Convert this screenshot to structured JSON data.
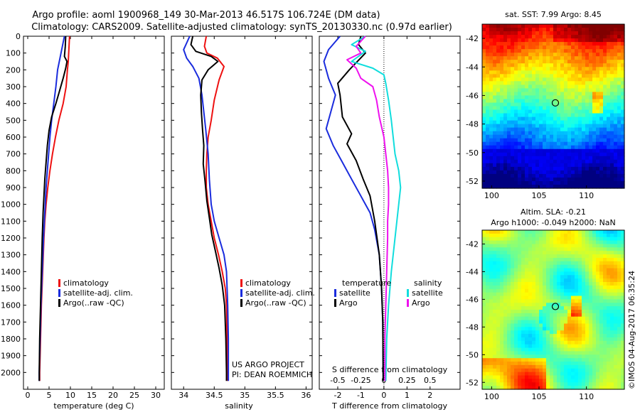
{
  "title_line1": "Argo profile: aoml 1900968_149 30-Mar-2013 46.517S 106.724E (DM data)",
  "title_line2": "Climatology: CARS2009. Satellite-adjusted climatology: synTS_20130330.nc (0.97d earlier)",
  "stamp": "©IMOS 04-Aug-2017 06:35:24",
  "project_note_1": "US ARGO PROJECT",
  "project_note_2": "PI: DEAN ROEMMICH",
  "colors": {
    "climatology": "#ee1111",
    "satellite": "#1a2cdd",
    "argo": "#000000",
    "argo_diff": "#ee11ee",
    "sat_diff": "#11dddd"
  },
  "chart_data": [
    {
      "id": "temperature",
      "type": "line",
      "xlabel": "temperature (deg C)",
      "ylabel": "",
      "xlim": [
        -1,
        32
      ],
      "ylim": [
        2100,
        0
      ],
      "xticks": [
        0,
        5,
        10,
        15,
        20,
        25,
        30
      ],
      "yticks": [
        0,
        100,
        200,
        300,
        400,
        500,
        600,
        700,
        800,
        900,
        1000,
        1100,
        1200,
        1300,
        1400,
        1500,
        1600,
        1700,
        1800,
        1900,
        2000
      ],
      "legend": [
        "climatology",
        "satellite-adj. clim.",
        "Argo(..raw -QC)"
      ],
      "series": [
        {
          "name": "climatology",
          "color_key": "climatology",
          "points": [
            [
              9.8,
              0
            ],
            [
              9.7,
              50
            ],
            [
              9.6,
              100
            ],
            [
              9.5,
              150
            ],
            [
              9.3,
              200
            ],
            [
              9.0,
              300
            ],
            [
              8.3,
              400
            ],
            [
              7.3,
              500
            ],
            [
              6.5,
              600
            ],
            [
              5.8,
              700
            ],
            [
              5.2,
              800
            ],
            [
              4.7,
              900
            ],
            [
              4.3,
              1000
            ],
            [
              4.0,
              1100
            ],
            [
              3.8,
              1200
            ],
            [
              3.5,
              1400
            ],
            [
              3.2,
              1600
            ],
            [
              3.0,
              1800
            ],
            [
              2.8,
              2000
            ],
            [
              2.8,
              2050
            ]
          ]
        },
        {
          "name": "satellite-adj. clim.",
          "color_key": "satellite",
          "points": [
            [
              8.6,
              0
            ],
            [
              8.2,
              50
            ],
            [
              7.8,
              100
            ],
            [
              7.4,
              150
            ],
            [
              7.0,
              200
            ],
            [
              6.6,
              300
            ],
            [
              6.1,
              400
            ],
            [
              5.6,
              500
            ],
            [
              5.2,
              600
            ],
            [
              4.9,
              700
            ],
            [
              4.6,
              800
            ],
            [
              4.3,
              900
            ],
            [
              4.1,
              1000
            ],
            [
              3.9,
              1100
            ],
            [
              3.7,
              1200
            ],
            [
              3.4,
              1400
            ],
            [
              3.1,
              1600
            ],
            [
              2.9,
              1800
            ],
            [
              2.7,
              2000
            ],
            [
              2.7,
              2050
            ]
          ]
        },
        {
          "name": "Argo(..raw -QC)",
          "color_key": "argo",
          "points": [
            [
              8.9,
              0
            ],
            [
              8.8,
              60
            ],
            [
              8.6,
              120
            ],
            [
              9.2,
              150
            ],
            [
              8.9,
              190
            ],
            [
              8.3,
              250
            ],
            [
              7.4,
              330
            ],
            [
              6.6,
              400
            ],
            [
              5.6,
              480
            ],
            [
              5.0,
              560
            ],
            [
              4.6,
              650
            ],
            [
              4.3,
              750
            ],
            [
              4.0,
              850
            ],
            [
              3.8,
              950
            ],
            [
              3.6,
              1050
            ],
            [
              3.4,
              1200
            ],
            [
              3.2,
              1400
            ],
            [
              3.0,
              1600
            ],
            [
              2.8,
              1800
            ],
            [
              2.7,
              2000
            ],
            [
              2.7,
              2050
            ]
          ]
        }
      ]
    },
    {
      "id": "salinity",
      "type": "line",
      "xlabel": "salinity",
      "ylabel": "",
      "xlim": [
        33.8,
        36.1
      ],
      "ylim": [
        2100,
        0
      ],
      "xticks": [
        34,
        34.5,
        35,
        35.5,
        36
      ],
      "legend": [
        "climatology",
        "satellite-adj. clim.",
        "Argo(..raw -QC)"
      ],
      "series": [
        {
          "name": "climatology",
          "color_key": "climatology",
          "points": [
            [
              34.37,
              0
            ],
            [
              34.34,
              60
            ],
            [
              34.38,
              100
            ],
            [
              34.55,
              130
            ],
            [
              34.66,
              180
            ],
            [
              34.58,
              260
            ],
            [
              34.5,
              380
            ],
            [
              34.45,
              500
            ],
            [
              34.4,
              600
            ],
            [
              34.38,
              700
            ],
            [
              34.37,
              800
            ],
            [
              34.37,
              900
            ],
            [
              34.4,
              1000
            ],
            [
              34.45,
              1100
            ],
            [
              34.5,
              1200
            ],
            [
              34.57,
              1300
            ],
            [
              34.63,
              1400
            ],
            [
              34.68,
              1500
            ],
            [
              34.7,
              1600
            ],
            [
              34.71,
              1800
            ],
            [
              34.72,
              2000
            ],
            [
              34.72,
              2050
            ]
          ]
        },
        {
          "name": "satellite-adj. clim.",
          "color_key": "satellite",
          "points": [
            [
              34.1,
              0
            ],
            [
              34.05,
              40
            ],
            [
              34.0,
              80
            ],
            [
              34.05,
              130
            ],
            [
              34.15,
              180
            ],
            [
              34.25,
              250
            ],
            [
              34.3,
              350
            ],
            [
              34.33,
              450
            ],
            [
              34.36,
              550
            ],
            [
              34.4,
              700
            ],
            [
              34.42,
              850
            ],
            [
              34.45,
              1000
            ],
            [
              34.5,
              1100
            ],
            [
              34.58,
              1200
            ],
            [
              34.66,
              1300
            ],
            [
              34.7,
              1400
            ],
            [
              34.72,
              1600
            ],
            [
              34.73,
              1800
            ],
            [
              34.73,
              2000
            ],
            [
              34.73,
              2050
            ]
          ]
        },
        {
          "name": "Argo(..raw -QC)",
          "color_key": "argo",
          "points": [
            [
              34.15,
              0
            ],
            [
              34.12,
              50
            ],
            [
              34.2,
              90
            ],
            [
              34.45,
              120
            ],
            [
              34.56,
              150
            ],
            [
              34.4,
              200
            ],
            [
              34.3,
              260
            ],
            [
              34.28,
              350
            ],
            [
              34.29,
              450
            ],
            [
              34.31,
              560
            ],
            [
              34.33,
              650
            ],
            [
              34.32,
              760
            ],
            [
              34.35,
              860
            ],
            [
              34.38,
              980
            ],
            [
              34.42,
              1080
            ],
            [
              34.46,
              1180
            ],
            [
              34.52,
              1280
            ],
            [
              34.58,
              1380
            ],
            [
              34.63,
              1480
            ],
            [
              34.67,
              1600
            ],
            [
              34.69,
              1800
            ],
            [
              34.7,
              2000
            ],
            [
              34.7,
              2050
            ]
          ]
        }
      ]
    },
    {
      "id": "difference",
      "type": "line",
      "xlabel": "T difference from climatology",
      "xlabel_top": "S difference from climatology",
      "xlim": [
        -2.8,
        3.3
      ],
      "ylim": [
        2100,
        0
      ],
      "xticks": [
        -2,
        -1,
        0,
        1,
        2
      ],
      "s_ticks": [
        {
          "value": -0.5,
          "label": "-0.5"
        },
        {
          "value": -0.25,
          "label": "-0.25"
        },
        {
          "value": 0,
          "label": "0"
        },
        {
          "value": 0.25,
          "label": "0.25"
        },
        {
          "value": 0.5,
          "label": "0.5"
        }
      ],
      "s_scale": 4,
      "legend_temperature": {
        "heading": "temperature",
        "items": [
          "satellite",
          "Argo"
        ]
      },
      "legend_salinity": {
        "heading": "salinity",
        "items": [
          "satellite",
          "Argo"
        ]
      },
      "series": [
        {
          "name": "temperature satellite",
          "color_key": "satellite",
          "points": [
            [
              -1.9,
              0
            ],
            [
              -2.4,
              80
            ],
            [
              -2.6,
              150
            ],
            [
              -2.4,
              250
            ],
            [
              -2.1,
              350
            ],
            [
              -2.3,
              450
            ],
            [
              -2.5,
              550
            ],
            [
              -2.2,
              650
            ],
            [
              -1.8,
              750
            ],
            [
              -1.4,
              850
            ],
            [
              -1.0,
              950
            ],
            [
              -0.6,
              1050
            ],
            [
              -0.4,
              1150
            ],
            [
              -0.2,
              1300
            ],
            [
              -0.1,
              1500
            ],
            [
              -0.05,
              1700
            ],
            [
              -0.03,
              2050
            ]
          ]
        },
        {
          "name": "temperature Argo",
          "color_key": "argo",
          "points": [
            [
              -1.0,
              0
            ],
            [
              -1.1,
              50
            ],
            [
              -0.8,
              100
            ],
            [
              -1.5,
              200
            ],
            [
              -2.0,
              280
            ],
            [
              -1.9,
              350
            ],
            [
              -1.8,
              480
            ],
            [
              -1.4,
              580
            ],
            [
              -1.6,
              640
            ],
            [
              -1.2,
              740
            ],
            [
              -0.9,
              850
            ],
            [
              -0.6,
              950
            ],
            [
              -0.4,
              1100
            ],
            [
              -0.2,
              1300
            ],
            [
              -0.1,
              1500
            ],
            [
              -0.05,
              1700
            ],
            [
              -0.03,
              2050
            ]
          ]
        },
        {
          "name": "salinity satellite",
          "color_key": "sat_diff",
          "points": [
            [
              -0.2,
              0
            ],
            [
              -0.35,
              50
            ],
            [
              -0.2,
              90
            ],
            [
              -0.35,
              150
            ],
            [
              -0.12,
              190
            ],
            [
              0.0,
              230
            ],
            [
              0.02,
              280
            ],
            [
              0.05,
              380
            ],
            [
              0.08,
              500
            ],
            [
              0.1,
              600
            ],
            [
              0.12,
              700
            ],
            [
              0.16,
              800
            ],
            [
              0.18,
              900
            ],
            [
              0.16,
              1000
            ],
            [
              0.14,
              1100
            ],
            [
              0.12,
              1200
            ],
            [
              0.1,
              1300
            ],
            [
              0.08,
              1400
            ],
            [
              0.05,
              1600
            ],
            [
              0.03,
              1800
            ],
            [
              0.02,
              2050
            ]
          ]
        },
        {
          "name": "salinity Argo",
          "color_key": "argo_diff",
          "points": [
            [
              -0.2,
              0
            ],
            [
              -0.3,
              60
            ],
            [
              -0.25,
              100
            ],
            [
              -0.4,
              140
            ],
            [
              -0.3,
              190
            ],
            [
              -0.25,
              250
            ],
            [
              -0.12,
              300
            ],
            [
              -0.08,
              380
            ],
            [
              -0.05,
              480
            ],
            [
              0.0,
              600
            ],
            [
              0.02,
              700
            ],
            [
              0.04,
              800
            ],
            [
              0.05,
              900
            ],
            [
              0.05,
              1000
            ],
            [
              0.04,
              1100
            ],
            [
              0.04,
              1200
            ],
            [
              0.03,
              1400
            ],
            [
              0.02,
              1600
            ],
            [
              0.01,
              1800
            ],
            [
              0.01,
              2050
            ]
          ]
        }
      ]
    },
    {
      "id": "sst-map",
      "type": "heatmap",
      "title": "sat. SST: 7.99 Argo: 8.45",
      "xlim": [
        99,
        114
      ],
      "ylim": [
        -52.5,
        -41
      ],
      "xticks": [
        100,
        105,
        110
      ],
      "yticks": [
        -42,
        -44,
        -46,
        -48,
        -50,
        -52
      ],
      "marker": {
        "lon": 106.724,
        "lat": -46.517
      }
    },
    {
      "id": "sla-map",
      "type": "heatmap",
      "title_line1": "Altim. SLA: -0.21",
      "title_line2": "Argo h1000: -0.049 h2000: NaN",
      "xlim": [
        99,
        114
      ],
      "ylim": [
        -52.5,
        -41
      ],
      "xticks": [
        100,
        105,
        110
      ],
      "yticks": [
        -42,
        -44,
        -46,
        -48,
        -50,
        -52
      ],
      "marker": {
        "lon": 106.724,
        "lat": -46.517
      }
    }
  ]
}
